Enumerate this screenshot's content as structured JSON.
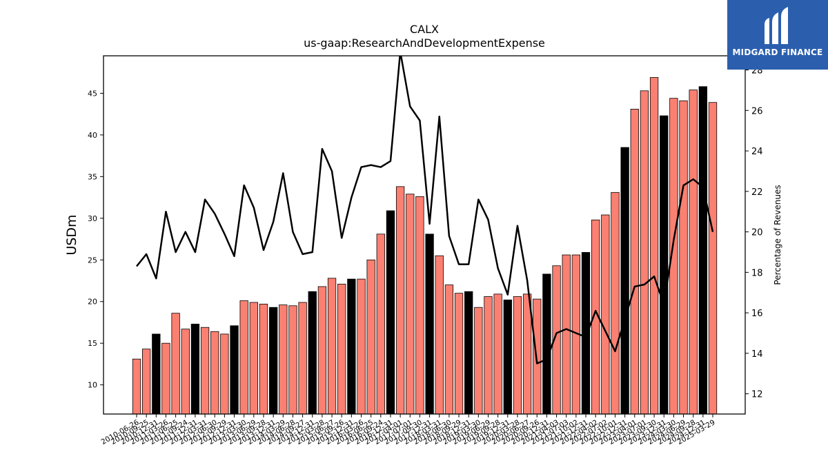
{
  "chart_data": {
    "type": "bar",
    "title": "CALX",
    "subtitle": "us-gaap:ResearchAndDevelopmentExpense",
    "ylabel": "USDm",
    "y2label": "Percentage of Revenues",
    "ylim": [
      6.5,
      49.5
    ],
    "y2lim": [
      11.0,
      28.7
    ],
    "yticks": [
      10,
      15,
      20,
      25,
      30,
      35,
      40,
      45
    ],
    "y2ticks": [
      12,
      14,
      16,
      18,
      20,
      22,
      24,
      26,
      28
    ],
    "colors": {
      "bar": "#fa8072",
      "bar_highlight": "#000000",
      "line": "#000000"
    },
    "categories": [
      "2010-06-26",
      "2010-09-25",
      "2010-12-31",
      "2011-03-26",
      "2011-06-25",
      "2011-09-24",
      "2011-12-31",
      "2012-03-31",
      "2012-06-30",
      "2012-09-29",
      "2012-12-31",
      "2013-03-30",
      "2013-06-29",
      "2013-09-28",
      "2013-12-31",
      "2014-03-29",
      "2014-06-28",
      "2014-09-27",
      "2014-12-31",
      "2015-03-28",
      "2015-06-27",
      "2015-09-26",
      "2015-12-31",
      "2016-03-26",
      "2016-06-25",
      "2016-09-24",
      "2016-12-31",
      "2017-04-01",
      "2017-07-01",
      "2017-09-30",
      "2017-12-31",
      "2018-03-31",
      "2018-06-30",
      "2018-09-29",
      "2018-12-31",
      "2019-03-30",
      "2019-06-29",
      "2019-09-28",
      "2019-12-31",
      "2020-03-28",
      "2020-06-27",
      "2020-09-26",
      "2020-12-31",
      "2021-04-03",
      "2021-07-03",
      "2021-10-02",
      "2021-12-31",
      "2022-04-02",
      "2022-07-02",
      "2022-10-01",
      "2022-12-31",
      "2023-04-01",
      "2023-07-01",
      "2023-09-30",
      "2023-12-31",
      "2024-03-30",
      "2024-06-29",
      "2024-09-28",
      "2024-12-31",
      "2025-03-29"
    ],
    "values": [
      13.1,
      14.3,
      16.1,
      15.0,
      18.6,
      16.7,
      17.3,
      16.9,
      16.4,
      16.1,
      17.1,
      20.1,
      19.9,
      19.7,
      19.3,
      19.6,
      19.5,
      19.9,
      21.2,
      21.8,
      22.8,
      22.1,
      22.7,
      22.7,
      25.0,
      28.1,
      30.9,
      33.8,
      32.9,
      32.6,
      28.1,
      25.5,
      22.0,
      21.0,
      21.2,
      19.3,
      20.6,
      20.9,
      20.2,
      20.6,
      20.9,
      20.3,
      23.3,
      24.3,
      25.6,
      25.6,
      25.9,
      29.8,
      30.4,
      33.1,
      38.5,
      43.1,
      45.3,
      46.9,
      42.3,
      44.4,
      44.1,
      45.4,
      45.8,
      43.9
    ],
    "highlight": [
      false,
      false,
      true,
      false,
      false,
      false,
      true,
      false,
      false,
      false,
      true,
      false,
      false,
      false,
      true,
      false,
      false,
      false,
      true,
      false,
      false,
      false,
      true,
      false,
      false,
      false,
      true,
      false,
      false,
      false,
      true,
      false,
      false,
      false,
      true,
      false,
      false,
      false,
      true,
      false,
      false,
      false,
      true,
      false,
      false,
      false,
      true,
      false,
      false,
      false,
      true,
      false,
      false,
      false,
      true,
      false,
      false,
      false,
      true,
      false
    ],
    "percent_of_revenues": [
      18.3,
      18.9,
      17.7,
      21.0,
      19.0,
      20.0,
      19.0,
      21.6,
      20.9,
      19.9,
      18.8,
      22.3,
      21.2,
      19.1,
      20.5,
      22.9,
      20.0,
      18.9,
      19.0,
      24.1,
      23.0,
      19.7,
      21.7,
      23.2,
      23.3,
      23.2,
      23.5,
      28.9,
      26.2,
      25.5,
      20.4,
      25.7,
      19.8,
      18.4,
      18.4,
      21.6,
      20.6,
      18.2,
      16.9,
      20.3,
      17.6,
      13.5,
      13.7,
      15.0,
      15.2,
      15.0,
      14.8,
      16.1,
      15.1,
      14.1,
      15.7,
      17.3,
      17.4,
      17.8,
      16.4,
      19.6,
      22.3,
      22.6,
      22.2,
      20.0
    ]
  },
  "brand": {
    "name": "MIDGARD FINANCE",
    "color": "#2b5fae"
  }
}
